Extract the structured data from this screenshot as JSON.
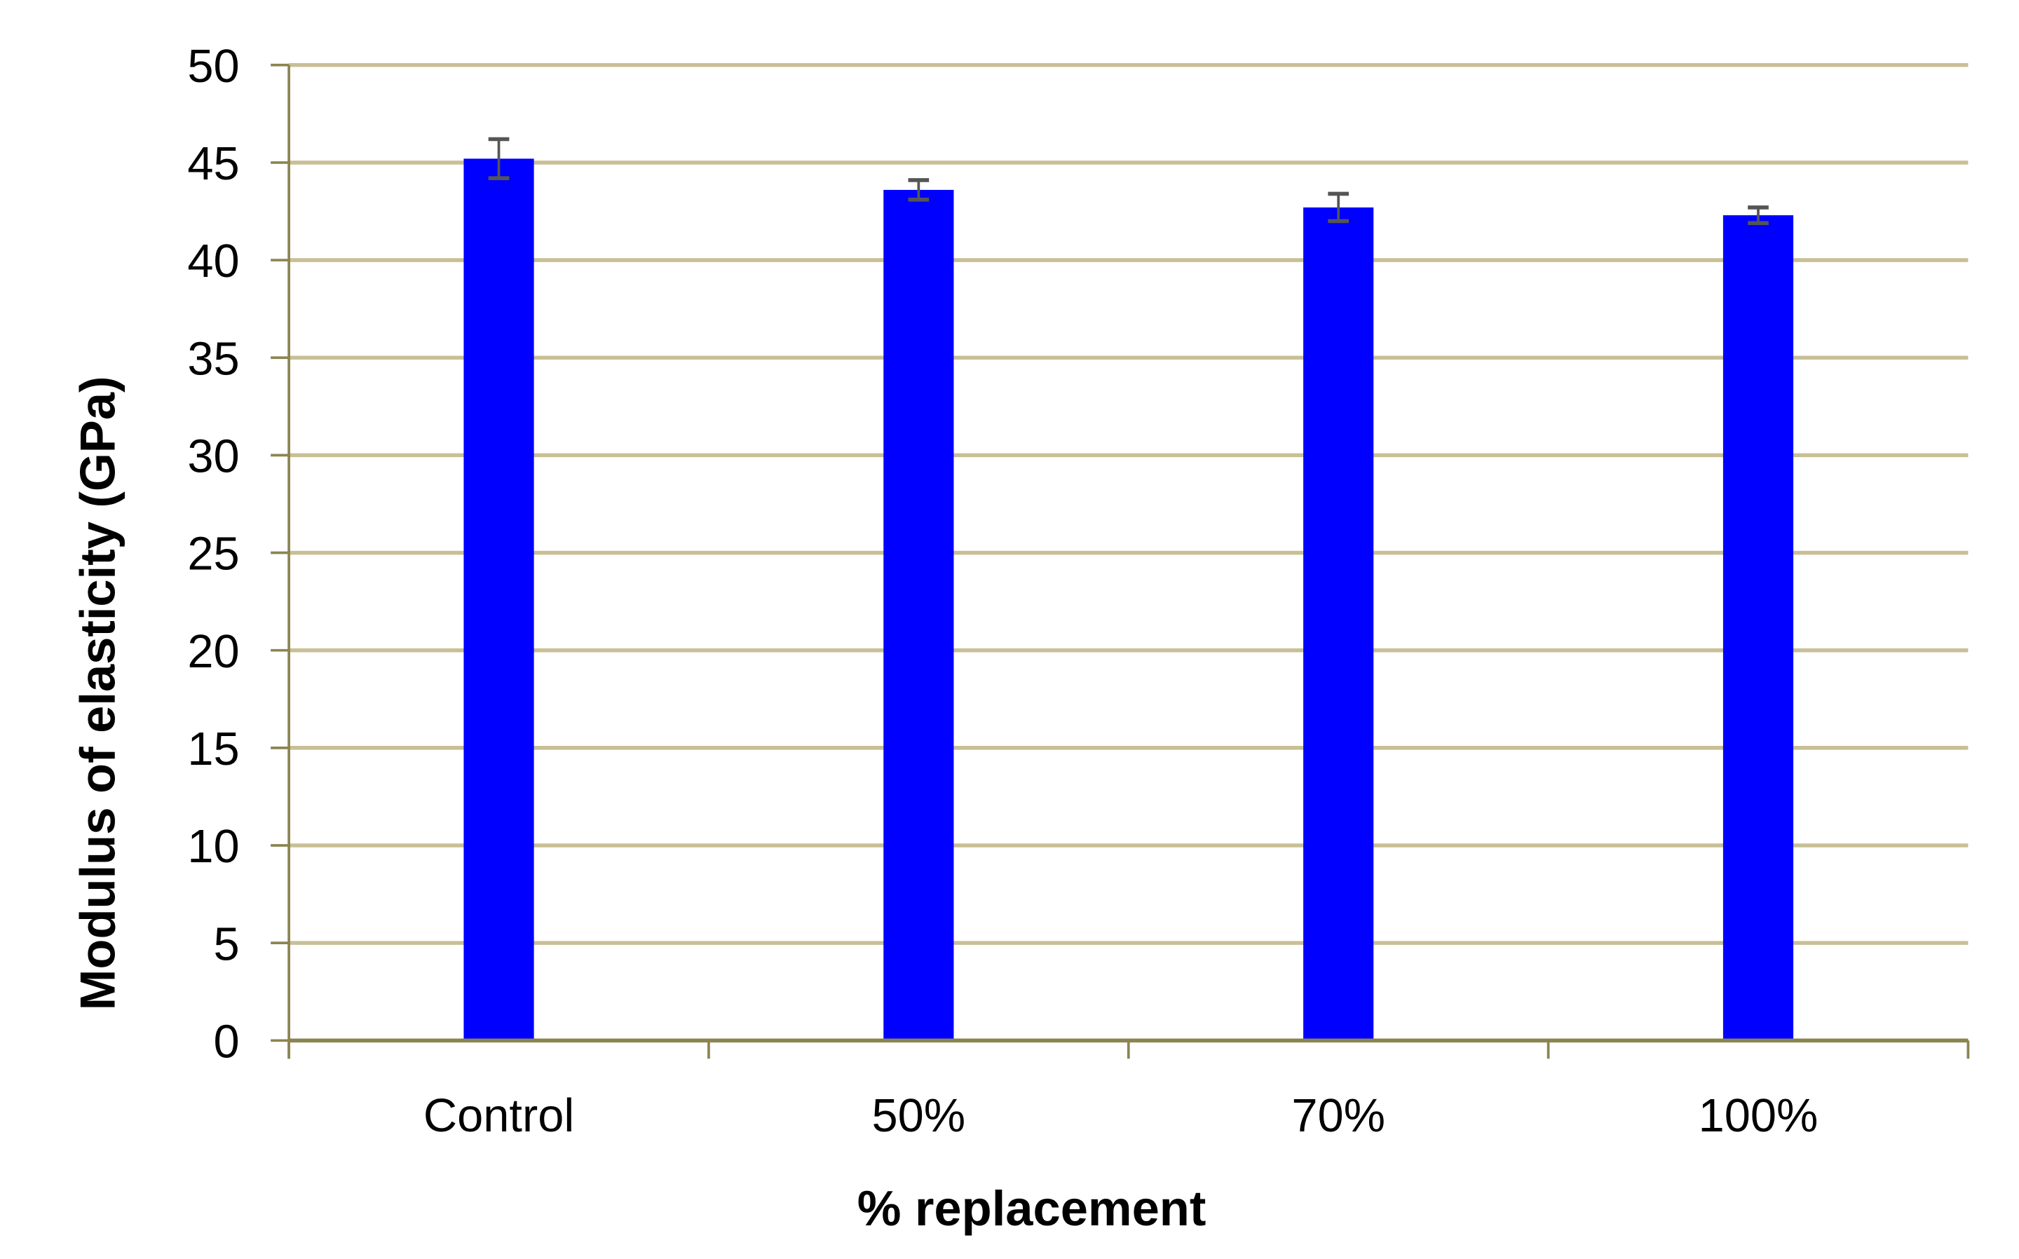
{
  "chart_data": {
    "type": "bar",
    "title": "",
    "xlabel": "% replacement",
    "ylabel": "Modulus of elasticity (GPa)",
    "categories": [
      "Control",
      "50%",
      "70%",
      "100%"
    ],
    "values": [
      45.2,
      43.6,
      42.7,
      42.3
    ],
    "error": [
      1.0,
      0.5,
      0.7,
      0.4
    ],
    "ylim": [
      0,
      50
    ],
    "yticks": [
      0,
      5,
      10,
      15,
      20,
      25,
      30,
      35,
      40,
      45,
      50
    ],
    "grid": true,
    "legend": "none",
    "colors": {
      "bar": "#0000ff",
      "grid": "#c8bf96",
      "axis": "#8c8450",
      "errorbar": "#555555"
    }
  }
}
